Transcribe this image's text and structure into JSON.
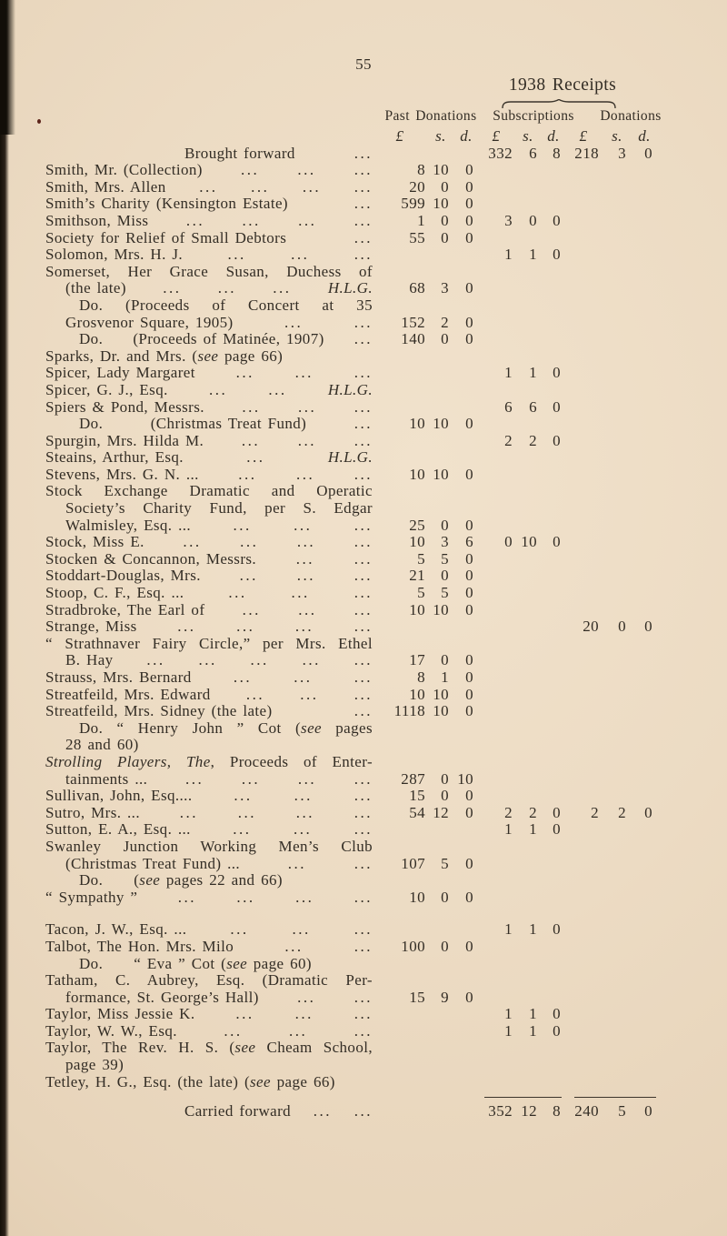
{
  "page": {
    "number": "55",
    "title": "1938 Receipts"
  },
  "table": {
    "group_headers": [
      "Past Donations",
      "Subscriptions",
      "Donations"
    ],
    "currency": [
      "£",
      "s.",
      "d."
    ],
    "rows": [
      {
        "type": "summary",
        "segs": [
          {
            "t": "Brought forward"
          }
        ],
        "dots": 1,
        "subs": [
          "332",
          "6",
          "8"
        ],
        "don": [
          "218",
          "3",
          "0"
        ]
      },
      {
        "segs": [
          {
            "t": "Smith, Mr. (Collection)"
          }
        ],
        "dots": 3,
        "past": [
          "8",
          "10",
          "0"
        ]
      },
      {
        "segs": [
          {
            "t": "Smith, Mrs. Allen"
          }
        ],
        "dots": 4,
        "past": [
          "20",
          "0",
          "0"
        ]
      },
      {
        "segs": [
          {
            "t": "Smith’s Charity (Kensington Estate)"
          }
        ],
        "dots": 1,
        "past": [
          "599",
          "10",
          "0"
        ]
      },
      {
        "segs": [
          {
            "t": "Smithson, Miss"
          }
        ],
        "dots": 4,
        "past": [
          "1",
          "0",
          "0"
        ],
        "subs": [
          "3",
          "0",
          "0"
        ]
      },
      {
        "segs": [
          {
            "t": "Society for Relief of Small Debtors"
          }
        ],
        "dots": 1,
        "past": [
          "55",
          "0",
          "0"
        ]
      },
      {
        "segs": [
          {
            "t": "Solomon, Mrs. H. J."
          }
        ],
        "dots": 3,
        "subs": [
          "1",
          "1",
          "0"
        ]
      },
      {
        "segs": [
          {
            "t": "Somerset, Her Grace Susan, Duchess of"
          }
        ],
        "justify": true
      },
      {
        "indent": 1,
        "segs": [
          {
            "t": "(the late)"
          }
        ],
        "dots": 3,
        "tail": [
          {
            "t": "H.L.G.",
            "i": true
          }
        ],
        "past": [
          "68",
          "3",
          "0"
        ]
      },
      {
        "indent": 2,
        "segs": [
          {
            "t": "Do. (Proceeds of Concert at 35"
          }
        ],
        "justify": true
      },
      {
        "indent": 1,
        "segs": [
          {
            "t": "Grosvenor Square, 1905)"
          }
        ],
        "dots": 2,
        "past": [
          "152",
          "2",
          "0"
        ]
      },
      {
        "indent": 2,
        "segs": [
          {
            "t": "Do."
          },
          {
            "t": "(Proceeds of Matinée, 1907)"
          }
        ],
        "dots": 1,
        "past": [
          "140",
          "0",
          "0"
        ]
      },
      {
        "segs": [
          {
            "t": "Sparks, Dr. and Mrs. ("
          },
          {
            "t": "see",
            "i": true
          },
          {
            "t": " page 66)"
          }
        ]
      },
      {
        "segs": [
          {
            "t": "Spicer, Lady Margaret"
          }
        ],
        "dots": 3,
        "subs": [
          "1",
          "1",
          "0"
        ]
      },
      {
        "segs": [
          {
            "t": "Spicer, G. J., Esq."
          }
        ],
        "dots": 2,
        "tail": [
          {
            "t": "H.L.G.",
            "i": true
          }
        ]
      },
      {
        "segs": [
          {
            "t": "Spiers & Pond, Messrs."
          }
        ],
        "dots": 3,
        "subs": [
          "6",
          "6",
          "0"
        ]
      },
      {
        "indent": 2,
        "segs": [
          {
            "t": "Do."
          },
          {
            "t": "(Christmas Treat Fund)"
          }
        ],
        "dots": 1,
        "past": [
          "10",
          "10",
          "0"
        ]
      },
      {
        "segs": [
          {
            "t": "Spurgin, Mrs. Hilda M."
          }
        ],
        "dots": 3,
        "subs": [
          "2",
          "2",
          "0"
        ]
      },
      {
        "segs": [
          {
            "t": "Steains, Arthur, Esq."
          }
        ],
        "dots": 1,
        "tail": [
          {
            "t": "H.L.G.",
            "i": true
          }
        ]
      },
      {
        "segs": [
          {
            "t": "Stevens, Mrs. G. N. ..."
          }
        ],
        "dots": 3,
        "past": [
          "10",
          "10",
          "0"
        ]
      },
      {
        "segs": [
          {
            "t": "Stock Exchange Dramatic and Operatic"
          }
        ],
        "justify": true
      },
      {
        "indent": 1,
        "segs": [
          {
            "t": "Society’s Charity Fund, per S. Edgar"
          }
        ],
        "justify": true
      },
      {
        "indent": 1,
        "segs": [
          {
            "t": "Walmisley, Esq. ..."
          }
        ],
        "dots": 3,
        "past": [
          "25",
          "0",
          "0"
        ]
      },
      {
        "segs": [
          {
            "t": "Stock, Miss E."
          }
        ],
        "dots": 4,
        "past": [
          "10",
          "3",
          "6"
        ],
        "subs": [
          "0",
          "10",
          "0"
        ]
      },
      {
        "segs": [
          {
            "t": "Stocken & Concannon, Messrs."
          }
        ],
        "dots": 2,
        "past": [
          "5",
          "5",
          "0"
        ]
      },
      {
        "segs": [
          {
            "t": "Stoddart-Douglas, Mrs."
          }
        ],
        "dots": 3,
        "past": [
          "21",
          "0",
          "0"
        ]
      },
      {
        "segs": [
          {
            "t": "Stoop, C. F., Esq. ..."
          }
        ],
        "dots": 3,
        "past": [
          "5",
          "5",
          "0"
        ]
      },
      {
        "segs": [
          {
            "t": "Stradbroke, The Earl of"
          }
        ],
        "dots": 3,
        "past": [
          "10",
          "10",
          "0"
        ]
      },
      {
        "segs": [
          {
            "t": "Strange, Miss"
          }
        ],
        "dots": 4,
        "don": [
          "20",
          "0",
          "0"
        ]
      },
      {
        "segs": [
          {
            "t": "“ Strathnaver Fairy Circle,” per Mrs. Ethel"
          }
        ],
        "justify": true
      },
      {
        "indent": 1,
        "segs": [
          {
            "t": "B. Hay"
          }
        ],
        "dots": 5,
        "past": [
          "17",
          "0",
          "0"
        ]
      },
      {
        "segs": [
          {
            "t": "Strauss, Mrs. Bernard"
          }
        ],
        "dots": 3,
        "past": [
          "8",
          "1",
          "0"
        ]
      },
      {
        "segs": [
          {
            "t": "Streatfeild, Mrs. Edward"
          }
        ],
        "dots": 3,
        "past": [
          "10",
          "10",
          "0"
        ]
      },
      {
        "segs": [
          {
            "t": "Streatfeild, Mrs. Sidney (the late)"
          }
        ],
        "dots": 1,
        "past": [
          "1118",
          "10",
          "0"
        ]
      },
      {
        "indent": 2,
        "segs": [
          {
            "t": "Do."
          },
          {
            "t": " “ Henry John ” Cot ("
          },
          {
            "t": "see",
            "i": true
          },
          {
            "t": " pages"
          }
        ],
        "justify": true
      },
      {
        "indent": 1,
        "segs": [
          {
            "t": "28 and 60)"
          }
        ]
      },
      {
        "segs": [
          {
            "t": "Strolling Players, The",
            "i": true
          },
          {
            "t": ", Proceeds of Enter-"
          }
        ],
        "justify": true
      },
      {
        "indent": 1,
        "segs": [
          {
            "t": "tainments ..."
          }
        ],
        "dots": 4,
        "past": [
          "287",
          "0",
          "10"
        ]
      },
      {
        "segs": [
          {
            "t": "Sullivan, John, Esq...."
          }
        ],
        "dots": 3,
        "past": [
          "15",
          "0",
          "0"
        ]
      },
      {
        "segs": [
          {
            "t": "Sutro, Mrs. ..."
          }
        ],
        "dots": 4,
        "past": [
          "54",
          "12",
          "0"
        ],
        "subs": [
          "2",
          "2",
          "0"
        ],
        "don": [
          "2",
          "2",
          "0"
        ]
      },
      {
        "segs": [
          {
            "t": "Sutton, E. A., Esq. ..."
          }
        ],
        "dots": 3,
        "subs": [
          "1",
          "1",
          "0"
        ]
      },
      {
        "segs": [
          {
            "t": "Swanley Junction Working Men’s Club"
          }
        ],
        "justify": true
      },
      {
        "indent": 1,
        "segs": [
          {
            "t": "(Christmas Treat Fund) ..."
          }
        ],
        "dots": 2,
        "past": [
          "107",
          "5",
          "0"
        ]
      },
      {
        "indent": 2,
        "dogap": true,
        "segs": [
          {
            "t": "Do."
          },
          {
            "t": "("
          },
          {
            "t": "see",
            "i": true
          },
          {
            "t": " pages 22 and 66)"
          }
        ]
      },
      {
        "segs": [
          {
            "t": "“ Sympathy ”"
          }
        ],
        "dots": 4,
        "past": [
          "10",
          "0",
          "0"
        ]
      },
      {
        "type": "gap"
      },
      {
        "segs": [
          {
            "t": "Tacon, J. W., Esq. ..."
          }
        ],
        "dots": 3,
        "subs": [
          "1",
          "1",
          "0"
        ]
      },
      {
        "segs": [
          {
            "t": "Talbot, The Hon. Mrs. Milo"
          }
        ],
        "dots": 2,
        "past": [
          "100",
          "0",
          "0"
        ]
      },
      {
        "indent": 2,
        "dogap": true,
        "segs": [
          {
            "t": "Do."
          },
          {
            "t": "“ Eva ” Cot ("
          },
          {
            "t": "see",
            "i": true
          },
          {
            "t": " page 60)"
          }
        ]
      },
      {
        "segs": [
          {
            "t": "Tatham, C. Aubrey, Esq. (Dramatic Per-"
          }
        ],
        "justify": true
      },
      {
        "indent": 1,
        "segs": [
          {
            "t": "formance, St. George’s Hall)"
          }
        ],
        "dots": 2,
        "past": [
          "15",
          "9",
          "0"
        ]
      },
      {
        "segs": [
          {
            "t": "Taylor, Miss Jessie K."
          }
        ],
        "dots": 3,
        "subs": [
          "1",
          "1",
          "0"
        ]
      },
      {
        "segs": [
          {
            "t": "Taylor, W. W., Esq."
          }
        ],
        "dots": 3,
        "subs": [
          "1",
          "1",
          "0"
        ]
      },
      {
        "segs": [
          {
            "t": "Taylor, The Rev. H. S. ("
          },
          {
            "t": "see",
            "i": true
          },
          {
            "t": " Cheam School,"
          }
        ],
        "justify": true
      },
      {
        "indent": 1,
        "segs": [
          {
            "t": "page 39)"
          }
        ]
      },
      {
        "segs": [
          {
            "t": "Tetley, H. G., Esq. (the late) ("
          },
          {
            "t": "see",
            "i": true
          },
          {
            "t": " page 66)"
          }
        ]
      },
      {
        "type": "rule"
      },
      {
        "type": "summary",
        "segs": [
          {
            "t": "Carried forward"
          }
        ],
        "dots": 2,
        "subs": [
          "352",
          "12",
          "8"
        ],
        "don": [
          "240",
          "5",
          "0"
        ]
      }
    ]
  }
}
